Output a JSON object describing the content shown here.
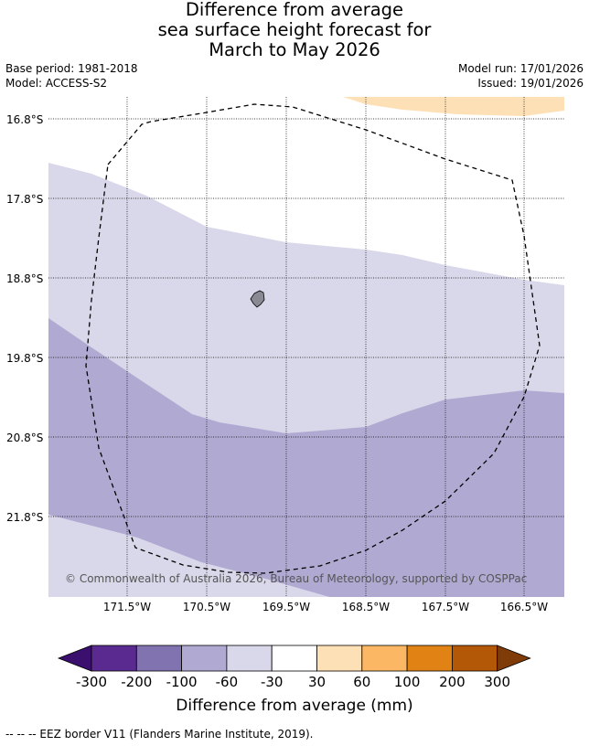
{
  "title": {
    "line1": "Difference from average",
    "line2": "sea surface height forecast for",
    "line3": "March to May 2026"
  },
  "meta": {
    "base_period": "Base period: 1981-2018",
    "model": "Model: ACCESS-S2",
    "model_run": "Model run: 17/01/2026",
    "issued": "Issued: 19/01/2026"
  },
  "map": {
    "latitude_labels": [
      "16.8°S",
      "17.8°S",
      "18.8°S",
      "19.8°S",
      "20.8°S",
      "21.8°S"
    ],
    "longitude_labels": [
      "171.5°W",
      "170.5°W",
      "169.5°W",
      "168.5°W",
      "167.5°W",
      "166.5°W"
    ],
    "copyright": "© Commonwealth of Australia 2026, Bureau of Meteorology, supported by COSPPac",
    "colors": {
      "band_minus30_to_minus60": "#d8d8ea",
      "band_minus60_to_minus100": "#b0aad2",
      "band_30_to_60": "#fde0b6",
      "land": "#8a8a95",
      "eez_line": "#000000"
    }
  },
  "colorbar": {
    "tick_labels": [
      "-300",
      "-200",
      "-100",
      "-60",
      "-30",
      "30",
      "60",
      "100",
      "200",
      "300"
    ],
    "colors": [
      "#3b0f6e",
      "#5a2a91",
      "#8073b0",
      "#b0aad2",
      "#d8d8ea",
      "#ffffff",
      "#fde0b6",
      "#fbb764",
      "#e08214",
      "#b35806",
      "#7f3b08"
    ],
    "title": "Difference from average (mm)"
  },
  "footnote": "--  --  -- EEZ border V11 (Flanders Marine Institute, 2019)."
}
